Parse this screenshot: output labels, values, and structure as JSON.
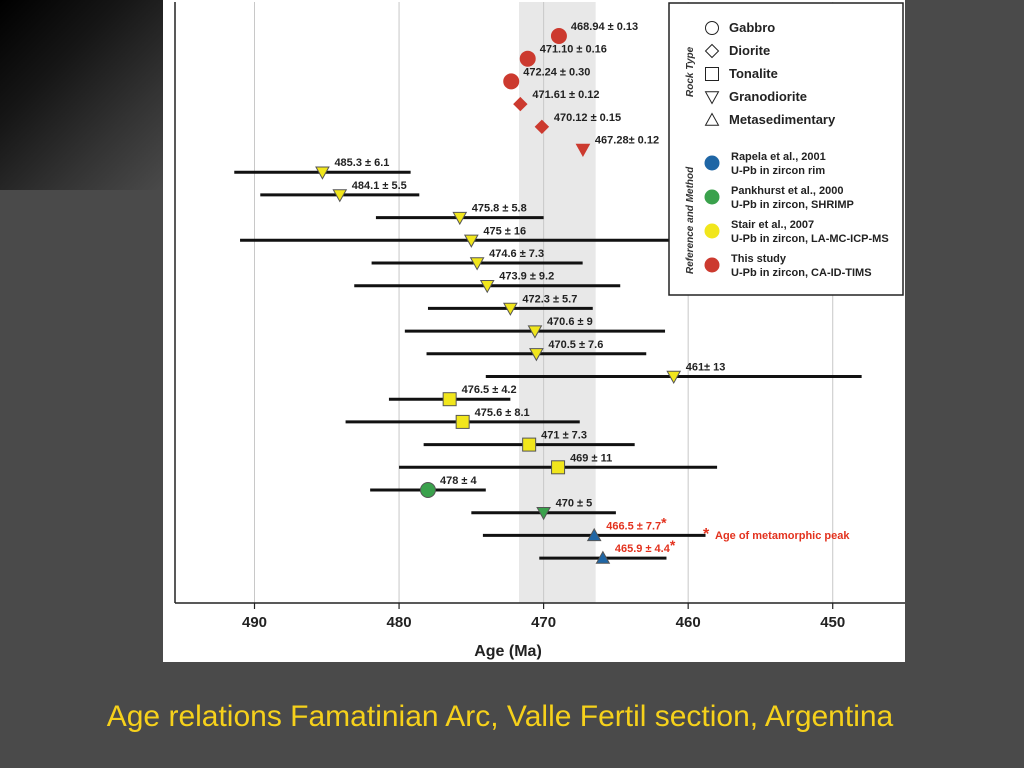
{
  "caption": "Age relations Famatinian Arc, Valle Fertil section, Argentina",
  "colors": {
    "red": "#cc3a2f",
    "yellow": "#f1e61c",
    "green": "#3aa14c",
    "blue": "#1f66a5",
    "band": "#e8e8e8",
    "grid": "#c8c8c8",
    "note_red": "#e3321e"
  },
  "chart_data": {
    "type": "scatter",
    "xlabel": "Age (Ma)",
    "x_reversed": true,
    "xlim": [
      495.5,
      445
    ],
    "xticks": [
      490,
      480,
      470,
      460,
      450
    ],
    "shaded_band": [
      471.7,
      466.4
    ],
    "grid": true,
    "series": [
      {
        "label": "468.94 ± 0.13",
        "x": 468.94,
        "err": 0.13,
        "marker": "circle",
        "color": "red"
      },
      {
        "label": "471.10 ± 0.16",
        "x": 471.1,
        "err": 0.16,
        "marker": "circle",
        "color": "red"
      },
      {
        "label": "472.24 ± 0.30",
        "x": 472.24,
        "err": 0.3,
        "marker": "circle",
        "color": "red"
      },
      {
        "label": "471.61 ± 0.12",
        "x": 471.61,
        "err": 0.12,
        "marker": "diamond",
        "color": "red"
      },
      {
        "label": "470.12 ± 0.15",
        "x": 470.12,
        "err": 0.15,
        "marker": "diamond",
        "color": "red"
      },
      {
        "label": "467.28± 0.12",
        "x": 467.28,
        "err": 0.12,
        "marker": "down-triangle",
        "color": "red"
      },
      {
        "label": "485.3 ± 6.1",
        "x": 485.3,
        "err": 6.1,
        "marker": "down-triangle",
        "color": "yellow"
      },
      {
        "label": "484.1 ± 5.5",
        "x": 484.1,
        "err": 5.5,
        "marker": "down-triangle",
        "color": "yellow"
      },
      {
        "label": "475.8 ± 5.8",
        "x": 475.8,
        "err": 5.8,
        "marker": "down-triangle",
        "color": "yellow"
      },
      {
        "label": "475 ± 16",
        "x": 475.0,
        "err": 16,
        "marker": "down-triangle",
        "color": "yellow"
      },
      {
        "label": "474.6 ± 7.3",
        "x": 474.6,
        "err": 7.3,
        "marker": "down-triangle",
        "color": "yellow"
      },
      {
        "label": "473.9 ± 9.2",
        "x": 473.9,
        "err": 9.2,
        "marker": "down-triangle",
        "color": "yellow"
      },
      {
        "label": "472.3 ± 5.7",
        "x": 472.3,
        "err": 5.7,
        "marker": "down-triangle",
        "color": "yellow"
      },
      {
        "label": "470.6 ± 9",
        "x": 470.6,
        "err": 9,
        "marker": "down-triangle",
        "color": "yellow"
      },
      {
        "label": "470.5 ± 7.6",
        "x": 470.5,
        "err": 7.6,
        "marker": "down-triangle",
        "color": "yellow"
      },
      {
        "label": "461± 13",
        "x": 461,
        "err": 13,
        "marker": "down-triangle",
        "color": "yellow"
      },
      {
        "label": "476.5 ± 4.2",
        "x": 476.5,
        "err": 4.2,
        "marker": "square",
        "color": "yellow"
      },
      {
        "label": "475.6 ± 8.1",
        "x": 475.6,
        "err": 8.1,
        "marker": "square",
        "color": "yellow"
      },
      {
        "label": "471 ± 7.3",
        "x": 471,
        "err": 7.3,
        "marker": "square",
        "color": "yellow"
      },
      {
        "label": "469 ± 11",
        "x": 469,
        "err": 11,
        "marker": "square",
        "color": "yellow"
      },
      {
        "label": "478 ± 4",
        "x": 478,
        "err": 4,
        "marker": "circle",
        "color": "green"
      },
      {
        "label": "470 ± 5",
        "x": 470,
        "err": 5,
        "marker": "down-triangle",
        "color": "green"
      },
      {
        "label": "466.5 ± 7.7",
        "x": 466.5,
        "err": 7.7,
        "marker": "up-triangle",
        "color": "blue",
        "metamorphic_peak": true
      },
      {
        "label": "465.9 ± 4.4",
        "x": 465.9,
        "err": 4.4,
        "marker": "up-triangle",
        "color": "blue",
        "metamorphic_peak": true
      }
    ],
    "legend": {
      "position": "top-right",
      "rock_type_title": "Rock Type",
      "rock_types": [
        {
          "marker": "circle",
          "label": "Gabbro"
        },
        {
          "marker": "diamond",
          "label": "Diorite"
        },
        {
          "marker": "square",
          "label": "Tonalite"
        },
        {
          "marker": "down-triangle",
          "label": "Granodiorite"
        },
        {
          "marker": "up-triangle",
          "label": "Metasedimentary"
        }
      ],
      "method_title": "Reference and Method",
      "methods": [
        {
          "color": "blue",
          "line1": "Rapela et al., 2001",
          "line2": "U-Pb in zircon rim"
        },
        {
          "color": "green",
          "line1": "Pankhurst et al., 2000",
          "line2": "U-Pb in zircon, SHRIMP"
        },
        {
          "color": "yellow",
          "line1": "Stair et al., 2007",
          "line2": "U-Pb in zircon, LA-MC-ICP-MS"
        },
        {
          "color": "red",
          "line1": "This study",
          "line2": "U-Pb in zircon, CA-ID-TIMS"
        }
      ]
    },
    "note": "Age of metamorphic peak"
  }
}
